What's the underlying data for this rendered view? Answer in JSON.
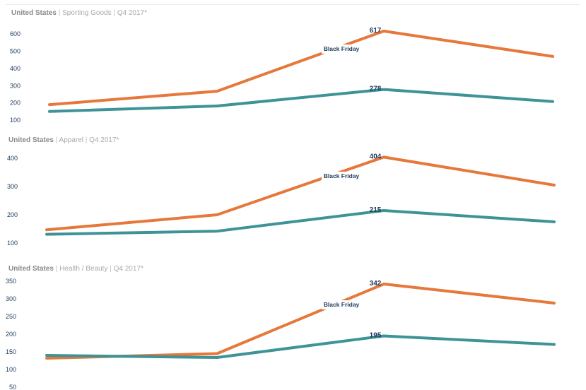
{
  "colors": {
    "series_orange": "#e5783a",
    "series_teal": "#3e9397",
    "axis_text": "#1f3a5c",
    "title_muted": "#a9a9a9"
  },
  "panels": [
    {
      "country": "United States",
      "separator": "|",
      "category": "Sporting Goods",
      "period": "Q4 2017*"
    },
    {
      "country": "United States",
      "separator": "|",
      "category": "Apparel",
      "period": "Q4 2017*"
    },
    {
      "country": "United States",
      "separator": "|",
      "category": "Health / Beauty",
      "period": "Q4 2017*"
    }
  ],
  "chart_data": [
    {
      "type": "line",
      "title": "United States | Sporting Goods | Q4 2017*",
      "x": [
        1,
        2,
        3,
        4
      ],
      "ylim": [
        100,
        650
      ],
      "yticks": [
        "100",
        "200",
        "300",
        "400",
        "500",
        "600"
      ],
      "grid": false,
      "series": [
        {
          "values": [
            190,
            268,
            617,
            470
          ],
          "color": "#e5783a"
        },
        {
          "values": [
            150,
            182,
            278,
            208
          ],
          "color": "#3e9397"
        }
      ],
      "data_labels": [
        "617",
        "278"
      ],
      "annotation": "Black Friday"
    },
    {
      "type": "line",
      "title": "United States | Apparel | Q4 2017*",
      "x": [
        1,
        2,
        3,
        4
      ],
      "ylim": [
        80,
        420
      ],
      "yticks": [
        "100",
        "200",
        "300",
        "400"
      ],
      "grid": false,
      "series": [
        {
          "values": [
            147,
            200,
            404,
            305
          ],
          "color": "#e5783a"
        },
        {
          "values": [
            131,
            142,
            215,
            175
          ],
          "color": "#3e9397"
        }
      ],
      "data_labels": [
        "404",
        "215"
      ],
      "annotation": "Black Friday"
    },
    {
      "type": "line",
      "title": "United States | Health / Beauty | Q4 2017*",
      "x": [
        1,
        2,
        3,
        4
      ],
      "ylim": [
        50,
        350
      ],
      "yticks": [
        "50",
        "100",
        "150",
        "200",
        "250",
        "300",
        "350"
      ],
      "grid": false,
      "series": [
        {
          "values": [
            132,
            145,
            342,
            288
          ],
          "color": "#e5783a"
        },
        {
          "values": [
            140,
            134,
            195,
            171
          ],
          "color": "#3e9397"
        }
      ],
      "data_labels": [
        "342",
        "195"
      ],
      "annotation": "Black Friday"
    }
  ]
}
